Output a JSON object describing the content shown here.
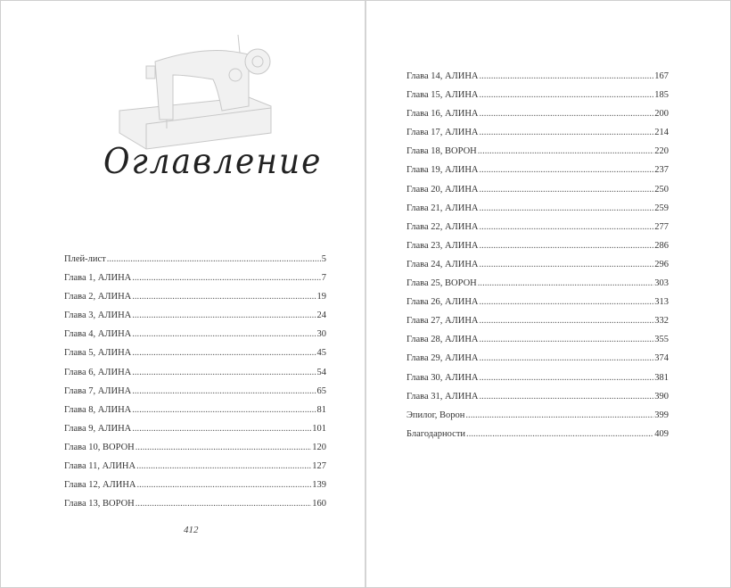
{
  "title": "Оглавление",
  "illustration": "sewing-machine",
  "folio": "412",
  "left": [
    {
      "label": "Плей-лист",
      "page": "5"
    },
    {
      "label": "Глава 1, АЛИНА",
      "page": "7"
    },
    {
      "label": "Глава 2, АЛИНА",
      "page": "19"
    },
    {
      "label": "Глава 3, АЛИНА",
      "page": "24"
    },
    {
      "label": "Глава 4, АЛИНА",
      "page": "30"
    },
    {
      "label": "Глава 5, АЛИНА",
      "page": "45"
    },
    {
      "label": "Глава 6, АЛИНА",
      "page": "54"
    },
    {
      "label": "Глава 7, АЛИНА",
      "page": "65"
    },
    {
      "label": "Глава 8, АЛИНА",
      "page": "81"
    },
    {
      "label": "Глава 9, АЛИНА",
      "page": "101"
    },
    {
      "label": "Глава 10, ВОРОН",
      "page": "120"
    },
    {
      "label": "Глава 11, АЛИНА",
      "page": "127"
    },
    {
      "label": "Глава 12, АЛИНА",
      "page": "139"
    },
    {
      "label": "Глава 13, ВОРОН",
      "page": "160"
    }
  ],
  "right": [
    {
      "label": "Глава 14, АЛИНА",
      "page": "167"
    },
    {
      "label": "Глава 15, АЛИНА",
      "page": "185"
    },
    {
      "label": "Глава 16, АЛИНА",
      "page": "200"
    },
    {
      "label": "Глава 17, АЛИНА",
      "page": "214"
    },
    {
      "label": "Глава 18, ВОРОН",
      "page": "220"
    },
    {
      "label": "Глава 19, АЛИНА",
      "page": "237"
    },
    {
      "label": "Глава 20, АЛИНА",
      "page": "250"
    },
    {
      "label": "Глава 21, АЛИНА",
      "page": "259"
    },
    {
      "label": "Глава 22, АЛИНА",
      "page": "277"
    },
    {
      "label": "Глава 23, АЛИНА",
      "page": "286"
    },
    {
      "label": "Глава 24, АЛИНА",
      "page": "296"
    },
    {
      "label": "Глава 25, ВОРОН",
      "page": "303"
    },
    {
      "label": "Глава 26, АЛИНА",
      "page": "313"
    },
    {
      "label": "Глава 27, АЛИНА",
      "page": "332"
    },
    {
      "label": "Глава 28, АЛИНА",
      "page": "355"
    },
    {
      "label": "Глава 29, АЛИНА",
      "page": "374"
    },
    {
      "label": "Глава 30, АЛИНА",
      "page": "381"
    },
    {
      "label": "Глава 31, АЛИНА",
      "page": "390"
    },
    {
      "label": "Эпилог, Ворон",
      "page": "399"
    },
    {
      "label": "Благодарности",
      "page": "409"
    }
  ]
}
